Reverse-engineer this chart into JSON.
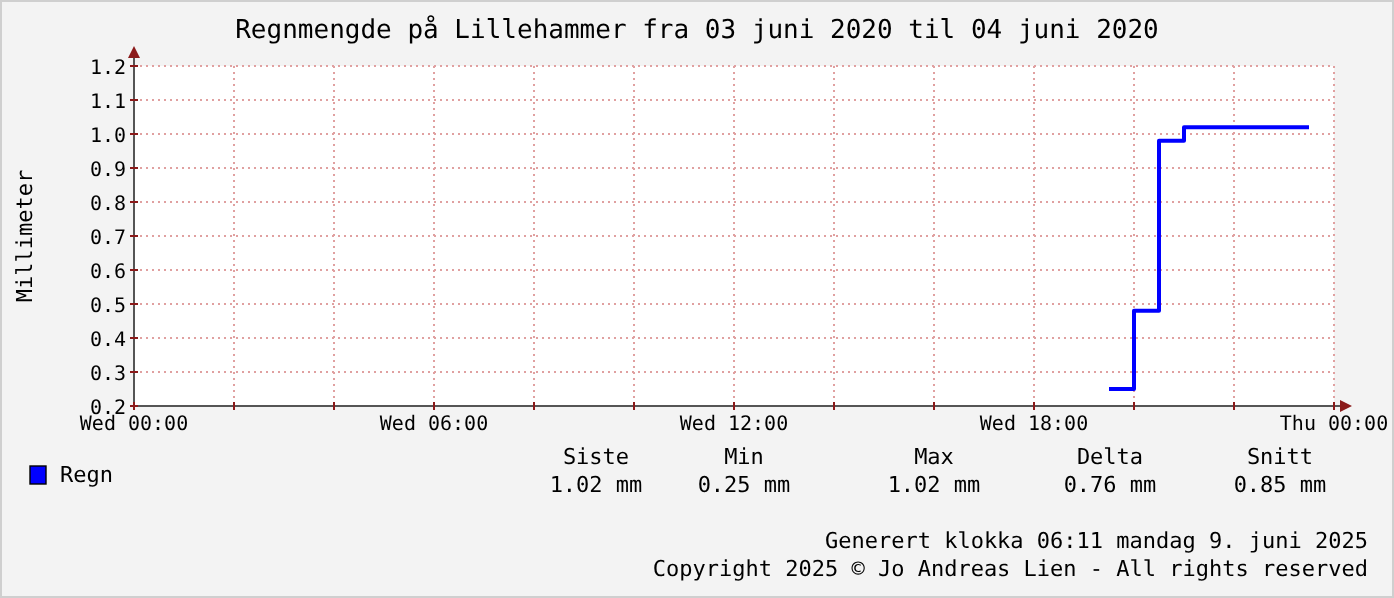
{
  "chart_data": {
    "type": "step",
    "title": "Regnmengde på Lillehammer fra 03 juni 2020 til 04 juni 2020",
    "ylabel": "Millimeter",
    "x": [
      "2020-06-03T19:30",
      "2020-06-03T20:00",
      "2020-06-03T20:30",
      "2020-06-03T21:00",
      "2020-06-03T23:30"
    ],
    "series": [
      {
        "name": "Regn",
        "color": "#0000ff",
        "values": [
          0.25,
          0.48,
          0.98,
          1.02,
          1.02
        ]
      }
    ],
    "xlim": [
      "2020-06-03T00:00",
      "2020-06-04T00:00"
    ],
    "xticks": [
      {
        "value": "2020-06-03T00:00",
        "label": "Wed 00:00"
      },
      {
        "value": "2020-06-03T02:00",
        "label": null
      },
      {
        "value": "2020-06-03T04:00",
        "label": null
      },
      {
        "value": "2020-06-03T06:00",
        "label": "Wed 06:00"
      },
      {
        "value": "2020-06-03T08:00",
        "label": null
      },
      {
        "value": "2020-06-03T10:00",
        "label": null
      },
      {
        "value": "2020-06-03T12:00",
        "label": "Wed 12:00"
      },
      {
        "value": "2020-06-03T14:00",
        "label": null
      },
      {
        "value": "2020-06-03T16:00",
        "label": null
      },
      {
        "value": "2020-06-03T18:00",
        "label": "Wed 18:00"
      },
      {
        "value": "2020-06-03T20:00",
        "label": null
      },
      {
        "value": "2020-06-03T22:00",
        "label": null
      },
      {
        "value": "2020-06-04T00:00",
        "label": "Thu 00:00"
      }
    ],
    "ylim": [
      0.2,
      1.2
    ],
    "yticks": [
      {
        "value": 0.2,
        "label": "0.2"
      },
      {
        "value": 0.3,
        "label": "0.3"
      },
      {
        "value": 0.4,
        "label": "0.4"
      },
      {
        "value": 0.5,
        "label": "0.5"
      },
      {
        "value": 0.6,
        "label": "0.6"
      },
      {
        "value": 0.7,
        "label": "0.7"
      },
      {
        "value": 0.8,
        "label": "0.8"
      },
      {
        "value": 0.9,
        "label": "0.9"
      },
      {
        "value": 1.0,
        "label": "1.0"
      },
      {
        "value": 1.1,
        "label": "1.1"
      },
      {
        "value": 1.2,
        "label": "1.2"
      }
    ],
    "grid": true,
    "legend": "bottom left",
    "line_style": "solid",
    "marker": "none",
    "annotations": [
      "Siste",
      "Min",
      "Max",
      "Delta",
      "Snitt",
      "1.02 mm",
      "0.25 mm",
      "1.02 mm",
      "0.76 mm",
      "0.85 mm",
      "Generert klokka 06:11 mandag 9. juni 2025",
      "Copyright 2025 © Jo Andreas Lien - All rights reserved"
    ]
  }
}
